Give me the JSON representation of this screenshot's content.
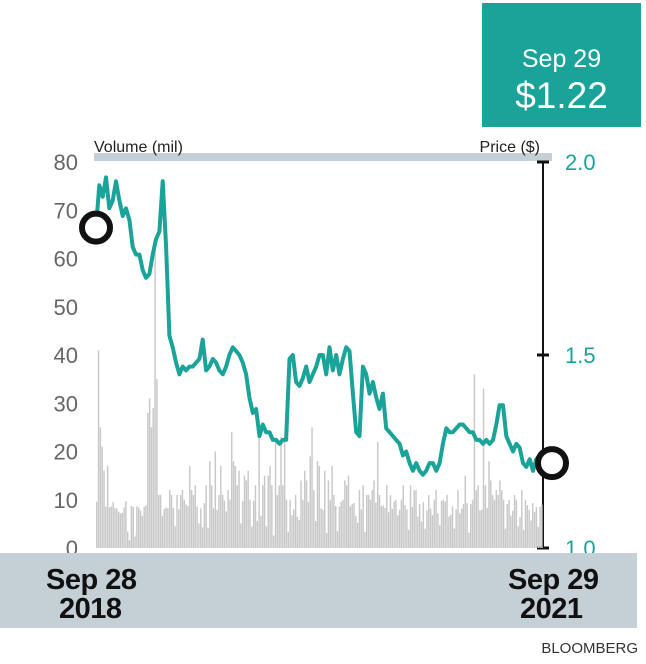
{
  "callout": {
    "date": "Sep 29",
    "price": "$1.22"
  },
  "source": "BLOOMBERG",
  "chart_data": {
    "type": "line",
    "x_start_label": [
      "Sep 28",
      "2018"
    ],
    "x_end_label": [
      "Sep 29",
      "2021"
    ],
    "volume_axis": {
      "label": "Volume (mil)",
      "ylim": [
        0,
        80
      ],
      "ticks": [
        "0",
        "10",
        "20",
        "30",
        "40",
        "50",
        "60",
        "70",
        "80"
      ]
    },
    "price_axis": {
      "label": "Price ($)",
      "ylim": [
        1.0,
        2.0
      ],
      "ticks": [
        "1.0",
        "1.5",
        "2.0"
      ]
    },
    "price_series": [
      1.83,
      1.94,
      1.91,
      1.96,
      1.88,
      1.9,
      1.95,
      1.9,
      1.86,
      1.88,
      1.85,
      1.78,
      1.76,
      1.76,
      1.72,
      1.7,
      1.71,
      1.76,
      1.8,
      1.82,
      1.95,
      1.78,
      1.55,
      1.52,
      1.48,
      1.45,
      1.47,
      1.46,
      1.47,
      1.47,
      1.48,
      1.49,
      1.54,
      1.46,
      1.47,
      1.49,
      1.48,
      1.46,
      1.45,
      1.47,
      1.5,
      1.52,
      1.51,
      1.5,
      1.48,
      1.45,
      1.39,
      1.35,
      1.36,
      1.29,
      1.32,
      1.3,
      1.3,
      1.28,
      1.28,
      1.27,
      1.28,
      1.28,
      1.49,
      1.5,
      1.43,
      1.42,
      1.44,
      1.47,
      1.43,
      1.45,
      1.47,
      1.5,
      1.5,
      1.45,
      1.52,
      1.46,
      1.5,
      1.45,
      1.49,
      1.52,
      1.51,
      1.4,
      1.3,
      1.29,
      1.47,
      1.45,
      1.4,
      1.43,
      1.39,
      1.36,
      1.4,
      1.31,
      1.3,
      1.29,
      1.28,
      1.27,
      1.24,
      1.25,
      1.22,
      1.2,
      1.22,
      1.2,
      1.19,
      1.2,
      1.22,
      1.22,
      1.2,
      1.22,
      1.27,
      1.31,
      1.3,
      1.3,
      1.31,
      1.32,
      1.32,
      1.31,
      1.3,
      1.3,
      1.28,
      1.28,
      1.27,
      1.28,
      1.27,
      1.28,
      1.32,
      1.37,
      1.37,
      1.29,
      1.27,
      1.25,
      1.27,
      1.26,
      1.22,
      1.21,
      1.23,
      1.2,
      1.23,
      1.24,
      1.22
    ],
    "volume_series": [
      9.6,
      41,
      25,
      21,
      16,
      8.6,
      17,
      8.4,
      8.6,
      9.5,
      8.3,
      8.2,
      7.5,
      7.2,
      7.3,
      8.4,
      9.7,
      3.4,
      1.6,
      8.7,
      8.5,
      2.4,
      8.6,
      8.4,
      7.8,
      6.6,
      8.5,
      8.9,
      28,
      31,
      25,
      29,
      64,
      35,
      11,
      11,
      6.6,
      8.1,
      8.4,
      8.2,
      12,
      11,
      8.3,
      4.5,
      11,
      8,
      11,
      12,
      10,
      9,
      8.7,
      17,
      12,
      11,
      13,
      8.6,
      5.1,
      8.2,
      4.3,
      9.3,
      13,
      4.2,
      18,
      13,
      8.2,
      20,
      7.9,
      11,
      17,
      11,
      9.8,
      7.6,
      12,
      10,
      24,
      18,
      17,
      13,
      16,
      5.1,
      9.7,
      15,
      14,
      16,
      10,
      4.4,
      9.8,
      13,
      5.6,
      23,
      6.7,
      13,
      15,
      4.5,
      15,
      17,
      13,
      2.6,
      22,
      11,
      13,
      23,
      13,
      22,
      10,
      3.3,
      10,
      6.8,
      8,
      11,
      6.5,
      5.8,
      14,
      10,
      16,
      14,
      9.5,
      19,
      25,
      12,
      5.6,
      18,
      17,
      8.2,
      7.9,
      16,
      3.1,
      14,
      9.9,
      17,
      11,
      8.7,
      3.5,
      8.6,
      9.6,
      10,
      14,
      13,
      15,
      8.6,
      9.1,
      9.3,
      6.6,
      5.2,
      12,
      8,
      13,
      3.3,
      11,
      11,
      10,
      12,
      14,
      9.4,
      22,
      11,
      8.7,
      8.8,
      8.3,
      13,
      7.4,
      11,
      8.1,
      9.6,
      10,
      6.8,
      7.9,
      10,
      13,
      8.9,
      8,
      3.8,
      13,
      8.5,
      12,
      12,
      6.5,
      9.1,
      5.5,
      9.5,
      4,
      7.8,
      11,
      8.2,
      6.8,
      10,
      12,
      7.2,
      4.7,
      9.8,
      10,
      9.6,
      11,
      6.5,
      6.9,
      8.6,
      4,
      8,
      12,
      7.2,
      8.2,
      9.1,
      15,
      9.3,
      3.2,
      9.1,
      10,
      36,
      12,
      13,
      7.8,
      7.9,
      33,
      13,
      8.3,
      18,
      14,
      11,
      9.9,
      12,
      11,
      14,
      12,
      10,
      4,
      9.1,
      10,
      6.7,
      7.7,
      11,
      10,
      4.5,
      6.4,
      12,
      3.7,
      10,
      8.9,
      7.9,
      5.7,
      9.3,
      7.5,
      8.5,
      4.4,
      8.6,
      9
    ]
  }
}
